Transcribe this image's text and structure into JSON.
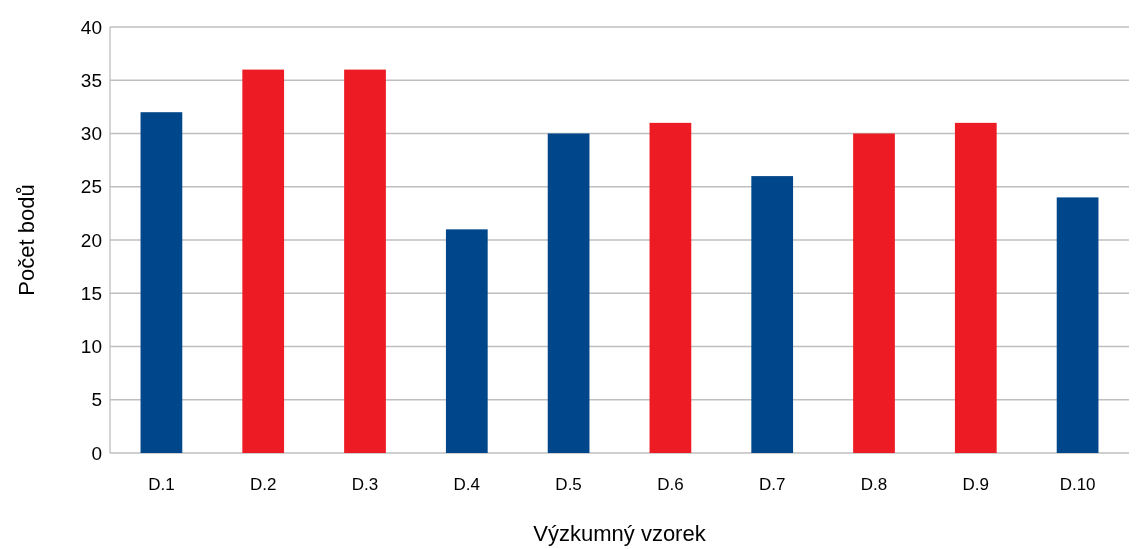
{
  "chart_data": {
    "type": "bar",
    "xlabel": "Výzkumný vzorek",
    "ylabel": "Počet bodů",
    "categories": [
      "D.1",
      "D.2",
      "D.3",
      "D.4",
      "D.5",
      "D.6",
      "D.7",
      "D.8",
      "D.9",
      "D.10"
    ],
    "values": [
      32,
      36,
      36,
      21,
      30,
      31,
      26,
      30,
      31,
      24
    ],
    "colors": [
      "#00468b",
      "#ed1c24",
      "#ed1c24",
      "#00468b",
      "#00468b",
      "#ed1c24",
      "#00468b",
      "#ed1c24",
      "#ed1c24",
      "#00468b"
    ],
    "ylim": [
      0,
      40
    ],
    "yticks": [
      0,
      5,
      10,
      15,
      20,
      25,
      30,
      35,
      40
    ],
    "grid": "y"
  }
}
